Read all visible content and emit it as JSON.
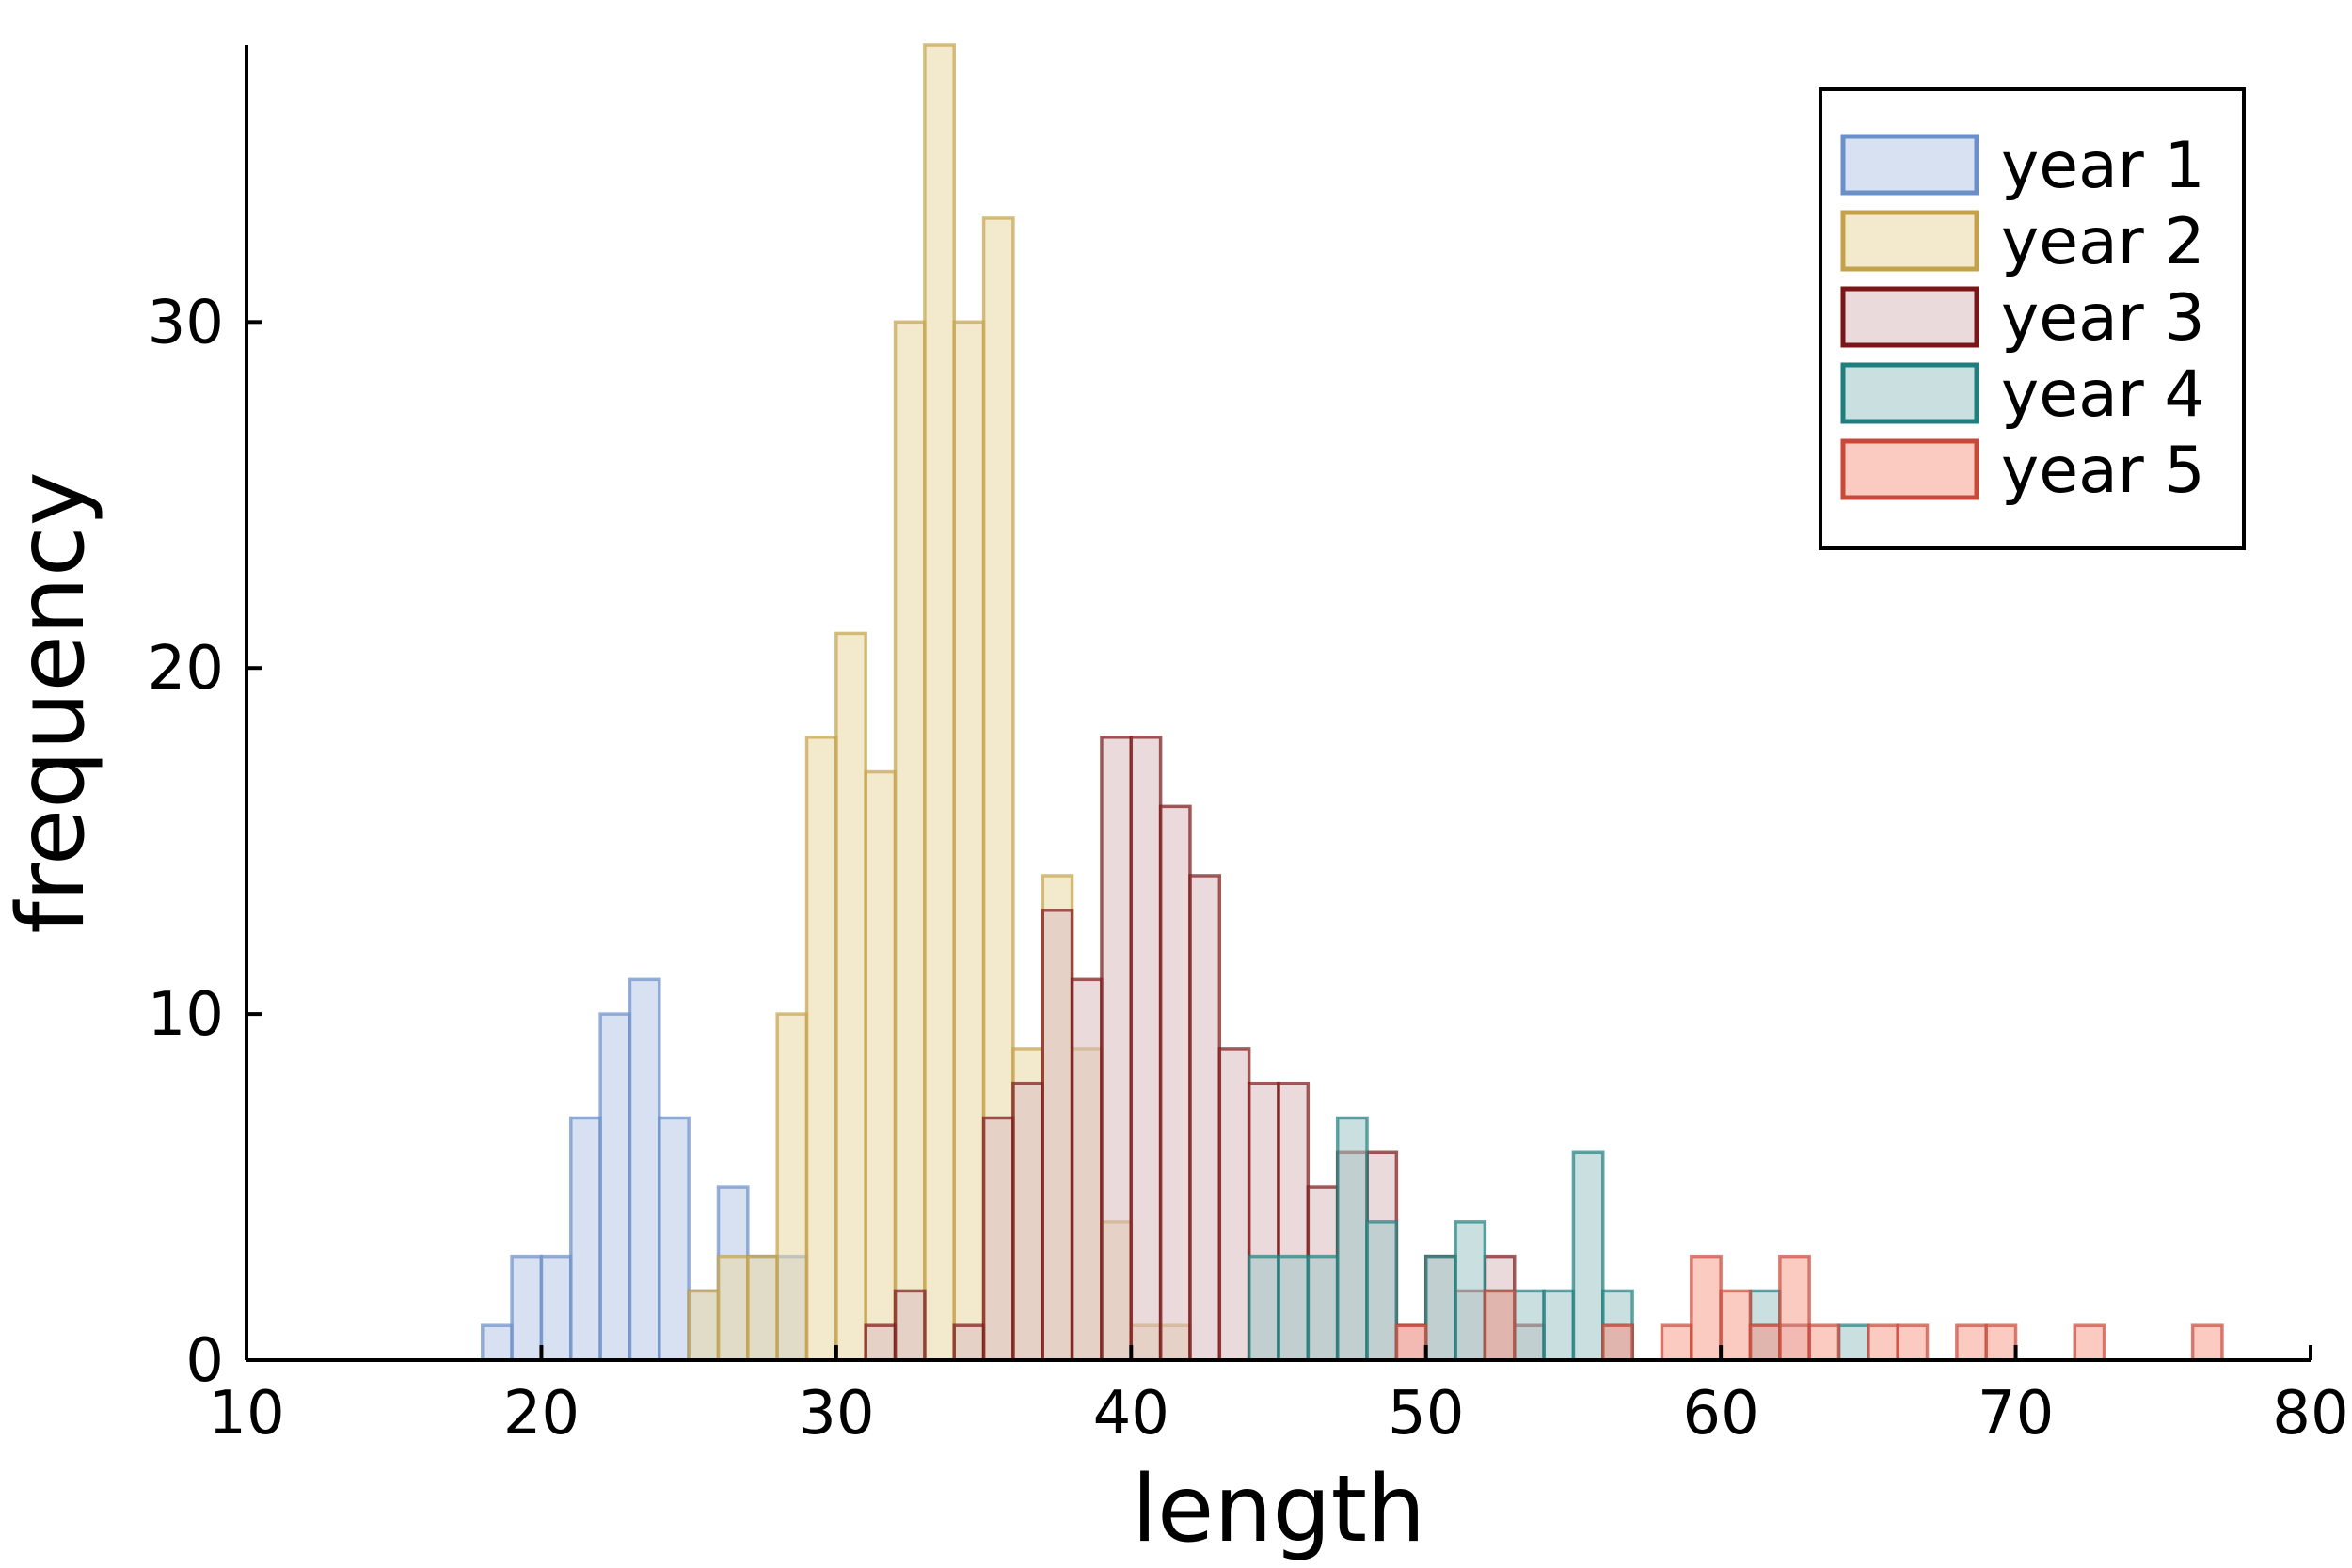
{
  "chart_data": {
    "type": "bar",
    "subtype": "overlapping-histogram",
    "xlabel": "length",
    "ylabel": "frequency",
    "xlim": [
      10,
      80
    ],
    "ylim": [
      0,
      38
    ],
    "xticks": [
      "10",
      "20",
      "30",
      "40",
      "50",
      "60",
      "70",
      "80"
    ],
    "yticks": [
      "0",
      "10",
      "20",
      "30"
    ],
    "legend_position": "top-right",
    "grid": false,
    "bin_width": 1,
    "series": [
      {
        "name": "year 1",
        "line_color": "#6b8fc9",
        "fill_color": "#b8c9e6",
        "bins": [
          [
            18,
            1
          ],
          [
            19,
            3
          ],
          [
            20,
            3
          ],
          [
            21,
            7
          ],
          [
            22,
            10
          ],
          [
            23,
            11
          ],
          [
            24,
            7
          ],
          [
            25,
            2
          ],
          [
            26,
            5
          ],
          [
            27,
            3
          ],
          [
            28,
            3
          ]
        ]
      },
      {
        "name": "year 2",
        "line_color": "#c4a24a",
        "fill_color": "#ead9a5",
        "bins": [
          [
            25,
            2
          ],
          [
            26,
            3
          ],
          [
            27,
            3
          ],
          [
            28,
            10
          ],
          [
            29,
            18
          ],
          [
            30,
            21
          ],
          [
            31,
            17
          ],
          [
            32,
            30
          ],
          [
            33,
            38
          ],
          [
            34,
            30
          ],
          [
            35,
            33
          ],
          [
            36,
            9
          ],
          [
            37,
            14
          ],
          [
            38,
            9
          ],
          [
            39,
            4
          ],
          [
            40,
            1
          ],
          [
            41,
            1
          ]
        ]
      },
      {
        "name": "year 3",
        "line_color": "#7a1616",
        "fill_color": "#d9bcc0",
        "bins": [
          [
            31,
            1
          ],
          [
            32,
            2
          ],
          [
            34,
            1
          ],
          [
            35,
            7
          ],
          [
            36,
            8
          ],
          [
            37,
            13
          ],
          [
            38,
            11
          ],
          [
            39,
            18
          ],
          [
            40,
            18
          ],
          [
            41,
            16
          ],
          [
            42,
            14
          ],
          [
            43,
            9
          ],
          [
            44,
            8
          ],
          [
            45,
            8
          ],
          [
            46,
            5
          ],
          [
            47,
            6
          ],
          [
            48,
            6
          ],
          [
            49,
            1
          ],
          [
            50,
            3
          ],
          [
            51,
            2
          ],
          [
            52,
            3
          ],
          [
            53,
            1
          ],
          [
            56,
            1
          ],
          [
            61,
            1
          ],
          [
            62,
            1
          ]
        ]
      },
      {
        "name": "year 4",
        "line_color": "#1f7f7f",
        "fill_color": "#9fc7c7",
        "bins": [
          [
            44,
            3
          ],
          [
            45,
            3
          ],
          [
            46,
            3
          ],
          [
            47,
            7
          ],
          [
            48,
            4
          ],
          [
            50,
            3
          ],
          [
            51,
            4
          ],
          [
            52,
            2
          ],
          [
            53,
            2
          ],
          [
            54,
            2
          ],
          [
            55,
            6
          ],
          [
            56,
            2
          ],
          [
            61,
            2
          ],
          [
            64,
            1
          ]
        ]
      },
      {
        "name": "year 5",
        "line_color": "#c9483a",
        "fill_color": "#f7a18f",
        "bins": [
          [
            49,
            1
          ],
          [
            52,
            2
          ],
          [
            56,
            1
          ],
          [
            58,
            1
          ],
          [
            59,
            3
          ],
          [
            60,
            2
          ],
          [
            61,
            1
          ],
          [
            62,
            3
          ],
          [
            63,
            1
          ],
          [
            65,
            1
          ],
          [
            66,
            1
          ],
          [
            68,
            1
          ],
          [
            69,
            1
          ],
          [
            72,
            1
          ],
          [
            76,
            1
          ]
        ]
      }
    ]
  }
}
